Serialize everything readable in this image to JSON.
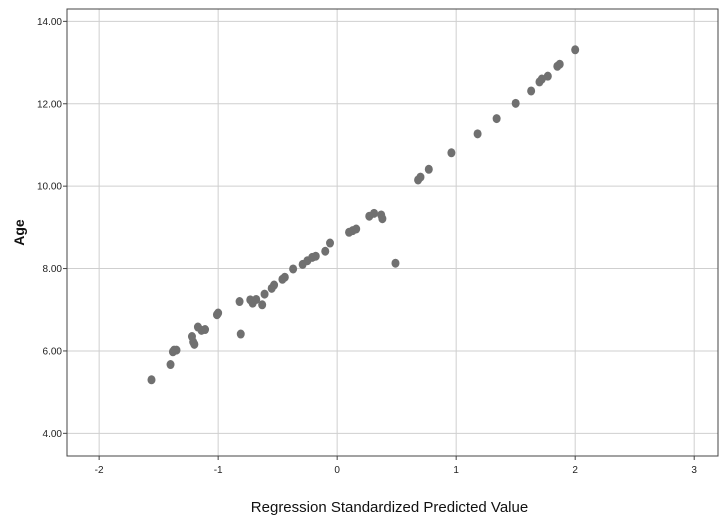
{
  "chart_data": {
    "type": "scatter",
    "title": "",
    "xlabel": "Regression Standardized Predicted Value",
    "ylabel": "Age",
    "xlim": [
      -2.27,
      3.2
    ],
    "ylim": [
      3.45,
      14.3
    ],
    "x_ticks": [
      -2,
      -1,
      0,
      1,
      2,
      3
    ],
    "x_tick_labels": [
      "-2",
      "-1",
      "0",
      "1",
      "2",
      "3"
    ],
    "y_ticks": [
      4,
      6,
      8,
      10,
      12,
      14
    ],
    "y_tick_labels": [
      "4.00",
      "6.00",
      "8.00",
      "10.00",
      "12.00",
      "14.00"
    ],
    "grid": true,
    "legend": "none",
    "point_color": "#707070",
    "grid_color": "#cfcfcf",
    "series": [
      {
        "points": [
          [
            -1.56,
            5.3
          ],
          [
            -1.4,
            5.67
          ],
          [
            -1.38,
            5.98
          ],
          [
            -1.37,
            6.02
          ],
          [
            -1.35,
            6.02
          ],
          [
            -1.22,
            6.35
          ],
          [
            -1.21,
            6.22
          ],
          [
            -1.2,
            6.16
          ],
          [
            -1.17,
            6.58
          ],
          [
            -1.14,
            6.5
          ],
          [
            -1.11,
            6.52
          ],
          [
            -1.01,
            6.88
          ],
          [
            -1.0,
            6.92
          ],
          [
            -0.82,
            7.2
          ],
          [
            -0.81,
            6.41
          ],
          [
            -0.73,
            7.24
          ],
          [
            -0.71,
            7.16
          ],
          [
            -0.68,
            7.25
          ],
          [
            -0.63,
            7.12
          ],
          [
            -0.61,
            7.38
          ],
          [
            -0.55,
            7.52
          ],
          [
            -0.53,
            7.6
          ],
          [
            -0.46,
            7.74
          ],
          [
            -0.44,
            7.79
          ],
          [
            -0.37,
            7.99
          ],
          [
            -0.29,
            8.1
          ],
          [
            -0.25,
            8.19
          ],
          [
            -0.21,
            8.27
          ],
          [
            -0.18,
            8.3
          ],
          [
            -0.1,
            8.42
          ],
          [
            -0.06,
            8.62
          ],
          [
            0.1,
            8.88
          ],
          [
            0.13,
            8.92
          ],
          [
            0.16,
            8.96
          ],
          [
            0.27,
            9.27
          ],
          [
            0.31,
            9.34
          ],
          [
            0.37,
            9.3
          ],
          [
            0.38,
            9.21
          ],
          [
            0.49,
            8.13
          ],
          [
            0.68,
            10.15
          ],
          [
            0.7,
            10.22
          ],
          [
            0.77,
            10.41
          ],
          [
            0.96,
            10.81
          ],
          [
            1.18,
            11.27
          ],
          [
            1.34,
            11.64
          ],
          [
            1.5,
            12.01
          ],
          [
            1.63,
            12.31
          ],
          [
            1.7,
            12.53
          ],
          [
            1.72,
            12.6
          ],
          [
            1.77,
            12.67
          ],
          [
            1.85,
            12.91
          ],
          [
            1.87,
            12.96
          ],
          [
            2.0,
            13.31
          ]
        ]
      }
    ]
  }
}
